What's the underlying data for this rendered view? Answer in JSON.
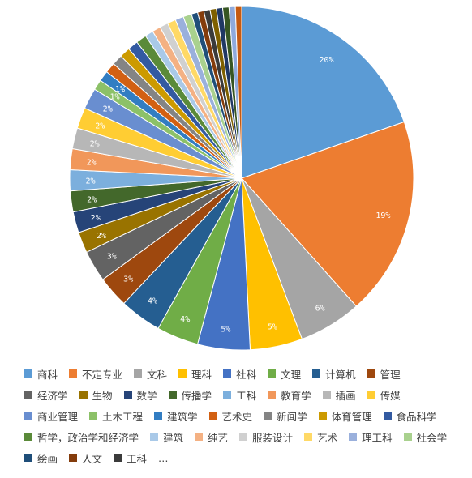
{
  "chart_data": {
    "type": "pie",
    "title": "",
    "slices": [
      {
        "label": "商科",
        "value": 20,
        "pct_label": "20%",
        "color": "#5b9bd5"
      },
      {
        "label": "不定专业",
        "value": 19,
        "pct_label": "19%",
        "color": "#ed7d31"
      },
      {
        "label": "文科",
        "value": 6,
        "pct_label": "6%",
        "color": "#a5a5a5"
      },
      {
        "label": "理科",
        "value": 5,
        "pct_label": "5%",
        "color": "#ffc000"
      },
      {
        "label": "社科",
        "value": 5,
        "pct_label": "5%",
        "color": "#4472c4"
      },
      {
        "label": "文理",
        "value": 4,
        "pct_label": "4%",
        "color": "#70ad47"
      },
      {
        "label": "计算机",
        "value": 4,
        "pct_label": "4%",
        "color": "#255e91"
      },
      {
        "label": "管理",
        "value": 3,
        "pct_label": "3%",
        "color": "#9e480e"
      },
      {
        "label": "经济学",
        "value": 3,
        "pct_label": "3%",
        "color": "#636363"
      },
      {
        "label": "生物",
        "value": 2,
        "pct_label": "2%",
        "color": "#997300"
      },
      {
        "label": "数学",
        "value": 2,
        "pct_label": "2%",
        "color": "#264478"
      },
      {
        "label": "传播学",
        "value": 2,
        "pct_label": "2%",
        "color": "#43682b"
      },
      {
        "label": "工科",
        "value": 2,
        "pct_label": "2%",
        "color": "#7cafdd"
      },
      {
        "label": "教育学",
        "value": 2,
        "pct_label": "2%",
        "color": "#f1975a"
      },
      {
        "label": "插画",
        "value": 2,
        "pct_label": "2%",
        "color": "#b7b7b7"
      },
      {
        "label": "传媒",
        "value": 2,
        "pct_label": "2%",
        "color": "#ffcd33"
      },
      {
        "label": "商业管理",
        "value": 2,
        "pct_label": "2%",
        "color": "#698ed0"
      },
      {
        "label": "土木工程",
        "value": 1,
        "pct_label": "1%",
        "color": "#8cc168"
      },
      {
        "label": "建筑学",
        "value": 1,
        "pct_label": "1%",
        "color": "#327dc2"
      },
      {
        "label": "艺术史",
        "value": 1,
        "pct_label": "",
        "color": "#d26012"
      },
      {
        "label": "新闻学",
        "value": 1,
        "pct_label": "",
        "color": "#848484"
      },
      {
        "label": "体育管理",
        "value": 1,
        "pct_label": "",
        "color": "#cc9a00"
      },
      {
        "label": "食品科学",
        "value": 1,
        "pct_label": "",
        "color": "#335aa1"
      },
      {
        "label": "哲学，政治学和经济学",
        "value": 1,
        "pct_label": "",
        "color": "#5a8a39"
      },
      {
        "label": "建筑",
        "value": 0.8,
        "pct_label": "",
        "color": "#a9c9e8"
      },
      {
        "label": "纯艺",
        "value": 0.8,
        "pct_label": "",
        "color": "#f4b183"
      },
      {
        "label": "服装设计",
        "value": 0.8,
        "pct_label": "",
        "color": "#d0d0d0"
      },
      {
        "label": "艺术",
        "value": 0.8,
        "pct_label": "",
        "color": "#ffd966"
      },
      {
        "label": "理工科",
        "value": 0.8,
        "pct_label": "",
        "color": "#9ab0dc"
      },
      {
        "label": "社会学",
        "value": 0.8,
        "pct_label": "",
        "color": "#a9d18e"
      },
      {
        "label": "绘画",
        "value": 0.6,
        "pct_label": "",
        "color": "#1f4e79"
      },
      {
        "label": "人文",
        "value": 0.6,
        "pct_label": "",
        "color": "#843c0c"
      },
      {
        "label": "工科",
        "value": 0.6,
        "pct_label": "",
        "color": "#3b3b3b"
      },
      {
        "label": "",
        "value": 0.6,
        "pct_label": "",
        "color": "#7f6000"
      },
      {
        "label": "",
        "value": 0.6,
        "pct_label": "",
        "color": "#203864"
      },
      {
        "label": "",
        "value": 0.6,
        "pct_label": "",
        "color": "#375623"
      },
      {
        "label": "",
        "value": 0.6,
        "pct_label": "",
        "color": "#8faadc"
      },
      {
        "label": "",
        "value": 0.6,
        "pct_label": "",
        "color": "#c55a11"
      }
    ],
    "legend_items": [
      "商科",
      "不定专业",
      "文科",
      "理科",
      "社科",
      "文理",
      "计算机",
      "管理",
      "经济学",
      "生物",
      "数学",
      "传播学",
      "工科",
      "教育学",
      "插画",
      "传媒",
      "商业管理",
      "土木工程",
      "建筑学",
      "艺术史",
      "新闻学",
      "体育管理",
      "食品科学",
      "哲学，政治学和经济学",
      "建筑",
      "纯艺",
      "服装设计",
      "艺术",
      "理工科",
      "社会学",
      "绘画",
      "人文",
      "工科"
    ],
    "legend_more": "…",
    "legend_position": "bottom"
  }
}
